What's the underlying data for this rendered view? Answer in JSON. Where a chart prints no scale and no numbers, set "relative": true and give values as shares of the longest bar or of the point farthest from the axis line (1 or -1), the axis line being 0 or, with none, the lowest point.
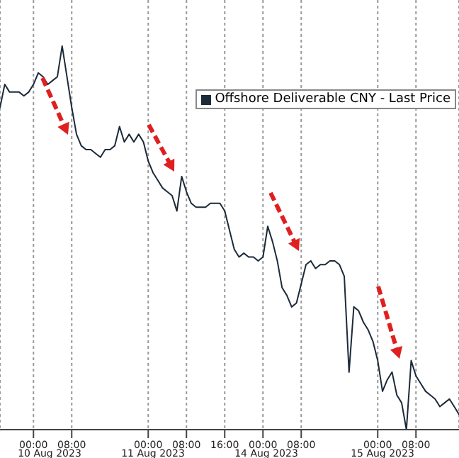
{
  "chart_data": {
    "type": "line",
    "relative": true,
    "categories": [
      null,
      null,
      null,
      null,
      null,
      null,
      null,
      "00:00",
      null,
      null,
      null,
      null,
      null,
      null,
      null,
      "08:00",
      null,
      null,
      null,
      null,
      null,
      null,
      null,
      null,
      null,
      null,
      null,
      null,
      null,
      null,
      null,
      "00:00",
      null,
      null,
      null,
      null,
      null,
      null,
      null,
      "08:00",
      null,
      null,
      null,
      null,
      null,
      null,
      null,
      "16:00",
      null,
      null,
      null,
      null,
      null,
      null,
      null,
      "00:00",
      null,
      null,
      null,
      null,
      null,
      null,
      null,
      "08:00",
      null,
      null,
      null,
      null,
      null,
      null,
      null,
      null,
      null,
      null,
      null,
      null,
      null,
      null,
      null,
      "00:00",
      null,
      null,
      null,
      null,
      null,
      null,
      null,
      "08:00",
      null,
      null,
      null,
      null,
      null,
      null,
      null,
      null,
      null
    ],
    "series": [
      {
        "name": "Offshore Deliverable CNY - Last Price",
        "color": "#1c2a3a",
        "values": [
          0.84,
          0.9,
          0.88,
          0.88,
          0.88,
          0.87,
          0.88,
          0.9,
          0.93,
          0.92,
          0.9,
          0.91,
          0.92,
          1.0,
          0.92,
          0.84,
          0.77,
          0.74,
          0.73,
          0.73,
          0.72,
          0.71,
          0.73,
          0.73,
          0.74,
          0.79,
          0.75,
          0.77,
          0.75,
          0.77,
          0.75,
          0.7,
          0.67,
          0.65,
          0.63,
          0.62,
          0.61,
          0.57,
          0.66,
          0.62,
          0.59,
          0.58,
          0.58,
          0.58,
          0.59,
          0.59,
          0.59,
          0.57,
          0.52,
          0.47,
          0.45,
          0.46,
          0.45,
          0.45,
          0.44,
          0.45,
          0.53,
          0.49,
          0.44,
          0.37,
          0.35,
          0.32,
          0.33,
          0.38,
          0.43,
          0.44,
          0.42,
          0.43,
          0.43,
          0.44,
          0.44,
          0.43,
          0.4,
          0.15,
          0.32,
          0.31,
          0.28,
          0.26,
          0.23,
          0.18,
          0.1,
          0.13,
          0.15,
          0.09,
          0.07,
          0.0,
          0.18,
          0.14,
          0.12,
          0.1,
          0.09,
          0.08,
          0.06,
          0.07,
          0.08,
          0.06,
          0.04
        ]
      }
    ],
    "annotations": [
      "10 Aug 2023",
      "11 Aug 2023",
      "14 Aug 2023",
      "15 Aug 2023"
    ],
    "grid": "x",
    "legend": "top right",
    "marker": "none",
    "line_style": "solid"
  }
}
